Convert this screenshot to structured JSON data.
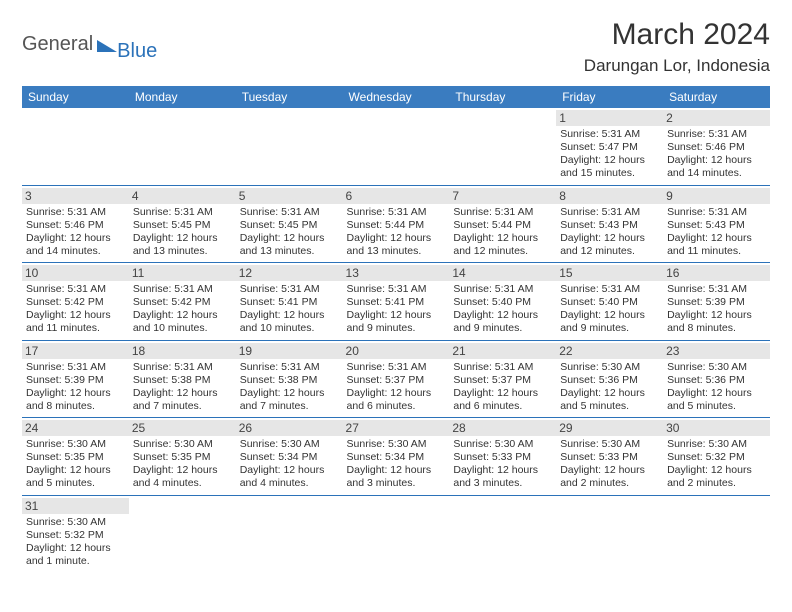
{
  "logo": {
    "part1": "General",
    "part2": "Blue"
  },
  "title": {
    "month": "March 2024",
    "location": "Darungan Lor, Indonesia"
  },
  "colors": {
    "header_bg": "#3a7cc0",
    "accent": "#2b72b9",
    "daybar": "#e6e6e6"
  },
  "weekdays": [
    "Sunday",
    "Monday",
    "Tuesday",
    "Wednesday",
    "Thursday",
    "Friday",
    "Saturday"
  ],
  "weeks": [
    [
      null,
      null,
      null,
      null,
      null,
      {
        "day": "1",
        "sunrise": "Sunrise: 5:31 AM",
        "sunset": "Sunset: 5:47 PM",
        "daylight": "Daylight: 12 hours and 15 minutes."
      },
      {
        "day": "2",
        "sunrise": "Sunrise: 5:31 AM",
        "sunset": "Sunset: 5:46 PM",
        "daylight": "Daylight: 12 hours and 14 minutes."
      }
    ],
    [
      {
        "day": "3",
        "sunrise": "Sunrise: 5:31 AM",
        "sunset": "Sunset: 5:46 PM",
        "daylight": "Daylight: 12 hours and 14 minutes."
      },
      {
        "day": "4",
        "sunrise": "Sunrise: 5:31 AM",
        "sunset": "Sunset: 5:45 PM",
        "daylight": "Daylight: 12 hours and 13 minutes."
      },
      {
        "day": "5",
        "sunrise": "Sunrise: 5:31 AM",
        "sunset": "Sunset: 5:45 PM",
        "daylight": "Daylight: 12 hours and 13 minutes."
      },
      {
        "day": "6",
        "sunrise": "Sunrise: 5:31 AM",
        "sunset": "Sunset: 5:44 PM",
        "daylight": "Daylight: 12 hours and 13 minutes."
      },
      {
        "day": "7",
        "sunrise": "Sunrise: 5:31 AM",
        "sunset": "Sunset: 5:44 PM",
        "daylight": "Daylight: 12 hours and 12 minutes."
      },
      {
        "day": "8",
        "sunrise": "Sunrise: 5:31 AM",
        "sunset": "Sunset: 5:43 PM",
        "daylight": "Daylight: 12 hours and 12 minutes."
      },
      {
        "day": "9",
        "sunrise": "Sunrise: 5:31 AM",
        "sunset": "Sunset: 5:43 PM",
        "daylight": "Daylight: 12 hours and 11 minutes."
      }
    ],
    [
      {
        "day": "10",
        "sunrise": "Sunrise: 5:31 AM",
        "sunset": "Sunset: 5:42 PM",
        "daylight": "Daylight: 12 hours and 11 minutes."
      },
      {
        "day": "11",
        "sunrise": "Sunrise: 5:31 AM",
        "sunset": "Sunset: 5:42 PM",
        "daylight": "Daylight: 12 hours and 10 minutes."
      },
      {
        "day": "12",
        "sunrise": "Sunrise: 5:31 AM",
        "sunset": "Sunset: 5:41 PM",
        "daylight": "Daylight: 12 hours and 10 minutes."
      },
      {
        "day": "13",
        "sunrise": "Sunrise: 5:31 AM",
        "sunset": "Sunset: 5:41 PM",
        "daylight": "Daylight: 12 hours and 9 minutes."
      },
      {
        "day": "14",
        "sunrise": "Sunrise: 5:31 AM",
        "sunset": "Sunset: 5:40 PM",
        "daylight": "Daylight: 12 hours and 9 minutes."
      },
      {
        "day": "15",
        "sunrise": "Sunrise: 5:31 AM",
        "sunset": "Sunset: 5:40 PM",
        "daylight": "Daylight: 12 hours and 9 minutes."
      },
      {
        "day": "16",
        "sunrise": "Sunrise: 5:31 AM",
        "sunset": "Sunset: 5:39 PM",
        "daylight": "Daylight: 12 hours and 8 minutes."
      }
    ],
    [
      {
        "day": "17",
        "sunrise": "Sunrise: 5:31 AM",
        "sunset": "Sunset: 5:39 PM",
        "daylight": "Daylight: 12 hours and 8 minutes."
      },
      {
        "day": "18",
        "sunrise": "Sunrise: 5:31 AM",
        "sunset": "Sunset: 5:38 PM",
        "daylight": "Daylight: 12 hours and 7 minutes."
      },
      {
        "day": "19",
        "sunrise": "Sunrise: 5:31 AM",
        "sunset": "Sunset: 5:38 PM",
        "daylight": "Daylight: 12 hours and 7 minutes."
      },
      {
        "day": "20",
        "sunrise": "Sunrise: 5:31 AM",
        "sunset": "Sunset: 5:37 PM",
        "daylight": "Daylight: 12 hours and 6 minutes."
      },
      {
        "day": "21",
        "sunrise": "Sunrise: 5:31 AM",
        "sunset": "Sunset: 5:37 PM",
        "daylight": "Daylight: 12 hours and 6 minutes."
      },
      {
        "day": "22",
        "sunrise": "Sunrise: 5:30 AM",
        "sunset": "Sunset: 5:36 PM",
        "daylight": "Daylight: 12 hours and 5 minutes."
      },
      {
        "day": "23",
        "sunrise": "Sunrise: 5:30 AM",
        "sunset": "Sunset: 5:36 PM",
        "daylight": "Daylight: 12 hours and 5 minutes."
      }
    ],
    [
      {
        "day": "24",
        "sunrise": "Sunrise: 5:30 AM",
        "sunset": "Sunset: 5:35 PM",
        "daylight": "Daylight: 12 hours and 5 minutes."
      },
      {
        "day": "25",
        "sunrise": "Sunrise: 5:30 AM",
        "sunset": "Sunset: 5:35 PM",
        "daylight": "Daylight: 12 hours and 4 minutes."
      },
      {
        "day": "26",
        "sunrise": "Sunrise: 5:30 AM",
        "sunset": "Sunset: 5:34 PM",
        "daylight": "Daylight: 12 hours and 4 minutes."
      },
      {
        "day": "27",
        "sunrise": "Sunrise: 5:30 AM",
        "sunset": "Sunset: 5:34 PM",
        "daylight": "Daylight: 12 hours and 3 minutes."
      },
      {
        "day": "28",
        "sunrise": "Sunrise: 5:30 AM",
        "sunset": "Sunset: 5:33 PM",
        "daylight": "Daylight: 12 hours and 3 minutes."
      },
      {
        "day": "29",
        "sunrise": "Sunrise: 5:30 AM",
        "sunset": "Sunset: 5:33 PM",
        "daylight": "Daylight: 12 hours and 2 minutes."
      },
      {
        "day": "30",
        "sunrise": "Sunrise: 5:30 AM",
        "sunset": "Sunset: 5:32 PM",
        "daylight": "Daylight: 12 hours and 2 minutes."
      }
    ],
    [
      {
        "day": "31",
        "sunrise": "Sunrise: 5:30 AM",
        "sunset": "Sunset: 5:32 PM",
        "daylight": "Daylight: 12 hours and 1 minute."
      },
      null,
      null,
      null,
      null,
      null,
      null
    ]
  ]
}
